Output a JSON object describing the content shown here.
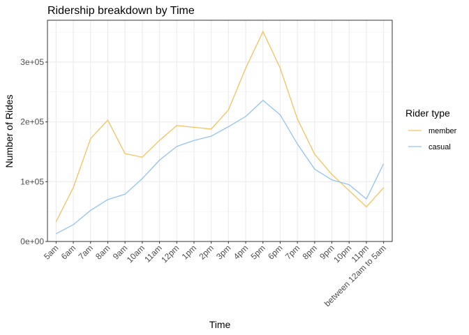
{
  "chart_data": {
    "type": "line",
    "title": "Ridership breakdown by Time",
    "xlabel": "Time",
    "ylabel": "Number of Rides",
    "categories": [
      "5am",
      "6am",
      "7am",
      "8am",
      "9am",
      "10am",
      "11am",
      "12pm",
      "1pm",
      "2pm",
      "3pm",
      "4pm",
      "5pm",
      "6pm",
      "7pm",
      "8pm",
      "9pm",
      "10pm",
      "11pm",
      "between 12am to 5am"
    ],
    "ylim": [
      0,
      370000
    ],
    "yticks": [
      0,
      100000,
      200000,
      300000
    ],
    "ytick_labels": [
      "0e+00",
      "1e+05",
      "2e+05",
      "3e+05"
    ],
    "grid": true,
    "legend": {
      "title": "Rider type",
      "position": "right"
    },
    "series": [
      {
        "name": "member",
        "color": "#F5C15C",
        "values": [
          33000,
          90000,
          172000,
          203000,
          147000,
          141000,
          169000,
          194000,
          191000,
          188000,
          220000,
          290000,
          351000,
          290000,
          205000,
          146000,
          112000,
          85000,
          58000,
          90000
        ]
      },
      {
        "name": "casual",
        "color": "#91C3F2",
        "values": [
          13000,
          28000,
          52000,
          70000,
          79000,
          105000,
          136000,
          159000,
          169000,
          176000,
          192000,
          209000,
          236000,
          212000,
          163000,
          121000,
          103000,
          95000,
          71000,
          130000
        ]
      }
    ]
  }
}
